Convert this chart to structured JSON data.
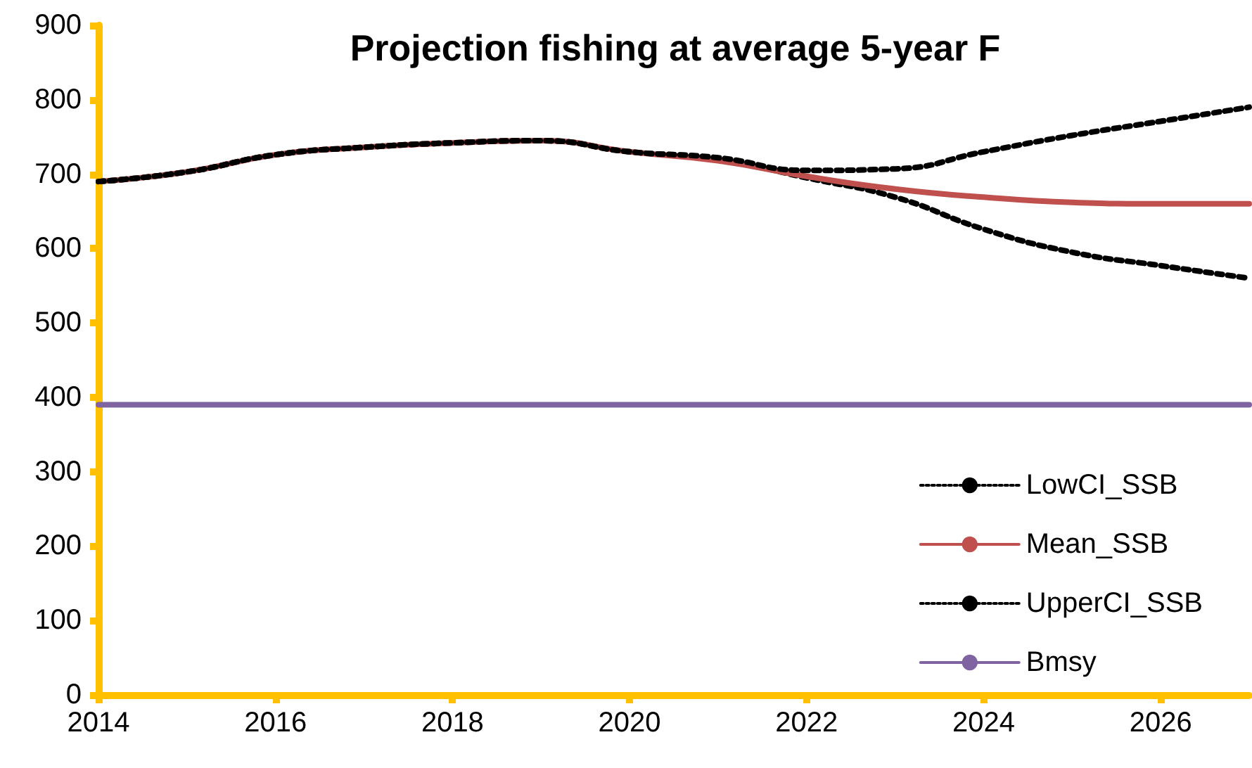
{
  "chart_data": {
    "type": "line",
    "title": "Projection fishing at average 5-year F",
    "x": [
      2014,
      2015,
      2016,
      2017,
      2018,
      2019,
      2020,
      2021,
      2022,
      2023,
      2024,
      2025,
      2026,
      2027
    ],
    "series": [
      {
        "name": "LowCI_SSB",
        "color": "#000000",
        "line_style": "dotted",
        "values": [
          690,
          703,
          726,
          736,
          742,
          745,
          730,
          720,
          695,
          669,
          626,
          595,
          577,
          560
        ]
      },
      {
        "name": "Mean_SSB",
        "color": "#c0504d",
        "line_style": "solid",
        "values": [
          690,
          703,
          726,
          736,
          742,
          745,
          730,
          718,
          697,
          680,
          669,
          662,
          660,
          660
        ]
      },
      {
        "name": "UpperCI_SSB",
        "color": "#000000",
        "line_style": "dotted",
        "values": [
          690,
          703,
          726,
          736,
          742,
          745,
          730,
          722,
          705,
          707,
          730,
          752,
          771,
          790
        ]
      },
      {
        "name": "Bmsy",
        "color": "#8064a2",
        "line_style": "solid",
        "values": [
          390,
          390,
          390,
          390,
          390,
          390,
          390,
          390,
          390,
          390,
          390,
          390,
          390,
          390
        ]
      }
    ],
    "xlim": [
      2014,
      2027
    ],
    "xticks": [
      2014,
      2016,
      2018,
      2020,
      2022,
      2024,
      2026
    ],
    "ylim": [
      0,
      900
    ],
    "yticks": [
      0,
      100,
      200,
      300,
      400,
      500,
      600,
      700,
      800,
      900
    ],
    "grid": false,
    "legend": "bottom right",
    "marker": "none"
  }
}
